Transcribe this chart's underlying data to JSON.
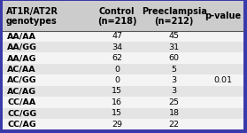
{
  "title_col1": "AT1R/AT2R\ngenotypes",
  "title_col2": "Control\n(n=218)",
  "title_col3": "Preeclampsia\n(n=212)",
  "title_col4": "p-value",
  "rows": [
    [
      "AA/AA",
      "47",
      "45"
    ],
    [
      "AA/GG",
      "34",
      "31"
    ],
    [
      "AA/AG",
      "62",
      "60"
    ],
    [
      "AC/AA",
      "0",
      "5"
    ],
    [
      "AC/GG",
      "0",
      "3"
    ],
    [
      "AC/AG",
      "15",
      "3"
    ],
    [
      "CC/AA",
      "16",
      "25"
    ],
    [
      "CC/GG",
      "15",
      "18"
    ],
    [
      "CC/AG",
      "29",
      "22"
    ]
  ],
  "pvalue": "0.01",
  "bg_color": "#f0f0f0",
  "header_bg": "#cccccc",
  "border_color": "#3a3aaa",
  "alt_row_color": "#e4e4e4",
  "white_row_color": "#f4f4f4",
  "header_font_size": 7.0,
  "cell_font_size": 6.8
}
